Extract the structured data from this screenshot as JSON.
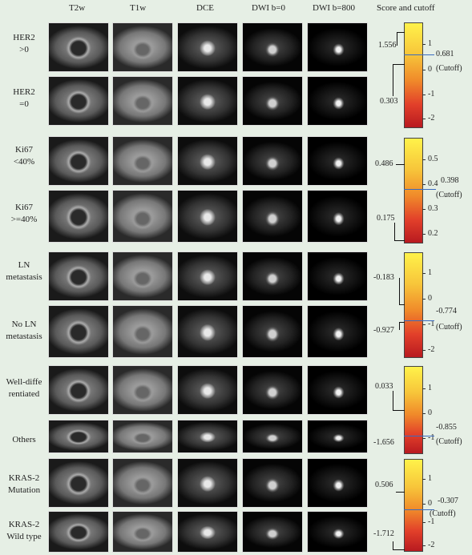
{
  "headers": [
    "T2w",
    "T1w",
    "DCE",
    "DWI b=0",
    "DWI b=800",
    "Score and cutoff"
  ],
  "groups": [
    {
      "rows": [
        [
          "HER2",
          ">0"
        ],
        [
          "HER2",
          "=0"
        ]
      ],
      "ticks": [
        "1",
        "0",
        "-1",
        "-2"
      ],
      "scores": [
        "1.556",
        "0.303"
      ],
      "cutoff": "0.681",
      "cutoff_label": "(Cutoff)"
    },
    {
      "rows": [
        [
          "Ki67",
          "<40%"
        ],
        [
          "Ki67",
          ">=40%"
        ]
      ],
      "ticks": [
        "0.5",
        "0.4",
        "0.3",
        "0.2"
      ],
      "scores": [
        "0.486",
        "0.175"
      ],
      "cutoff": "0.398",
      "cutoff_label": "(Cutoff)"
    },
    {
      "rows": [
        [
          "LN",
          "metastasis"
        ],
        [
          "No LN",
          "metastasis"
        ]
      ],
      "ticks": [
        "1",
        "0",
        "-1",
        "-2"
      ],
      "scores": [
        "-0.183",
        "-0.927"
      ],
      "cutoff": "-0.774",
      "cutoff_label": "(Cutoff)"
    },
    {
      "rows": [
        [
          "Well-diffe",
          "rentiated"
        ],
        [
          "Others",
          ""
        ]
      ],
      "ticks": [
        "1",
        "0",
        "-1"
      ],
      "scores": [
        "0.033",
        "-1.656"
      ],
      "cutoff": "-0.855",
      "cutoff_label": "(Cutoff)"
    },
    {
      "rows": [
        [
          "KRAS-2",
          "Mutation"
        ],
        [
          "KRAS-2",
          "Wild type"
        ]
      ],
      "ticks": [
        "1",
        "0",
        "-1",
        "-2"
      ],
      "scores": [
        "0.506",
        "-1.712"
      ],
      "cutoff": "-0.307",
      "cutoff_label": "(Cutoff)"
    }
  ]
}
